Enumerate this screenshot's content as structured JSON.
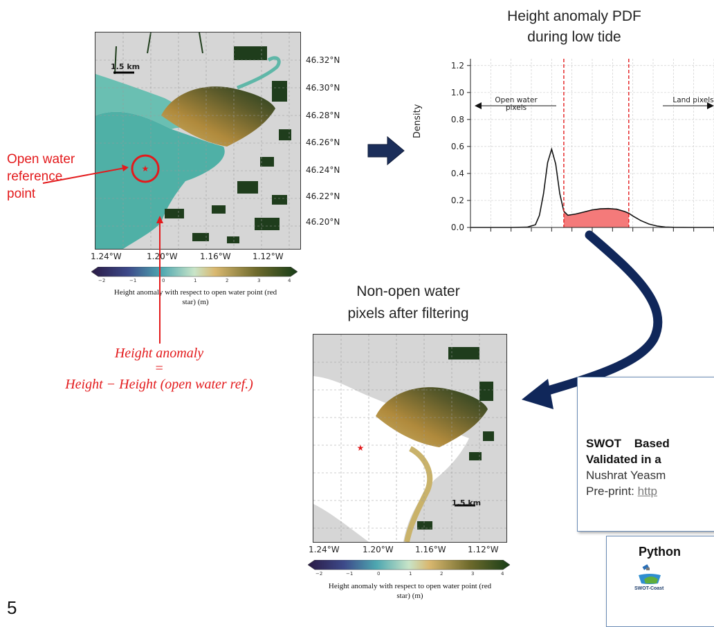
{
  "map1": {
    "lat_labels": [
      "46.32°N",
      "46.30°N",
      "46.28°N",
      "46.26°N",
      "46.24°N",
      "46.22°N",
      "46.20°N"
    ],
    "lon_labels": [
      "1.24°W",
      "1.20°W",
      "1.16°W",
      "1.12°W"
    ],
    "scale_label": "1.5 km",
    "colorbar_ticks": [
      "−2",
      "−1",
      "0",
      "1",
      "2",
      "3",
      "4"
    ],
    "colorbar_caption": "Height anomaly with respect to open water point (red star) (m)"
  },
  "reference_label": "Open water reference point",
  "formula": {
    "line1": "Height anomaly",
    "line2": "=",
    "line3": "Height − Height (open water ref.)"
  },
  "pdf_chart": {
    "title_line1": "Height anomaly PDF",
    "title_line2": "during low tide",
    "open_water_label": "Open water pixels",
    "land_label": "Land pixels"
  },
  "map2": {
    "title_line1": "Non-open water",
    "title_line2": "pixels after filtering",
    "lon_labels": [
      "1.24°W",
      "1.20°W",
      "1.16°W",
      "1.12°W"
    ],
    "scale_label": "1.5 km",
    "colorbar_ticks": [
      "−2",
      "−1",
      "0",
      "1",
      "2",
      "3",
      "4"
    ],
    "colorbar_caption": "Height anomaly with respect to open water point (red star) (m)"
  },
  "paper_box": {
    "title_line1": "SWOT Based",
    "title_line2": "Validated in a",
    "author": "Nushrat Yeasm",
    "preprint_label": "Pre-print:",
    "preprint_link": "http"
  },
  "python_box": {
    "title": "Python",
    "logo_text": "SWOT-Coast"
  },
  "corner_glyph": "5",
  "chart_data": {
    "type": "area",
    "title": "Height anomaly PDF during low tide",
    "ylabel": "Density",
    "xlabel": "",
    "y_ticks": [
      "0.0",
      "0.2",
      "0.4",
      "0.6",
      "0.8",
      "1.0",
      "1.2"
    ],
    "ylim": [
      0,
      1.25
    ],
    "xlim": [
      -2,
      4
    ],
    "thresholds": [
      0.3,
      1.9
    ],
    "grid": true,
    "x": [
      -2,
      -1.5,
      -1,
      -0.6,
      -0.4,
      -0.3,
      -0.2,
      -0.1,
      0,
      0.1,
      0.2,
      0.3,
      0.4,
      0.6,
      0.8,
      1.0,
      1.2,
      1.4,
      1.6,
      1.8,
      1.9,
      2.0,
      2.2,
      2.4,
      2.6,
      2.8,
      3.0,
      3.5,
      4.0
    ],
    "y": [
      0,
      0,
      0,
      0.002,
      0.02,
      0.09,
      0.25,
      0.48,
      0.58,
      0.47,
      0.25,
      0.12,
      0.09,
      0.1,
      0.115,
      0.13,
      0.138,
      0.14,
      0.135,
      0.118,
      0.105,
      0.085,
      0.05,
      0.025,
      0.01,
      0.003,
      0.001,
      0,
      0
    ]
  }
}
